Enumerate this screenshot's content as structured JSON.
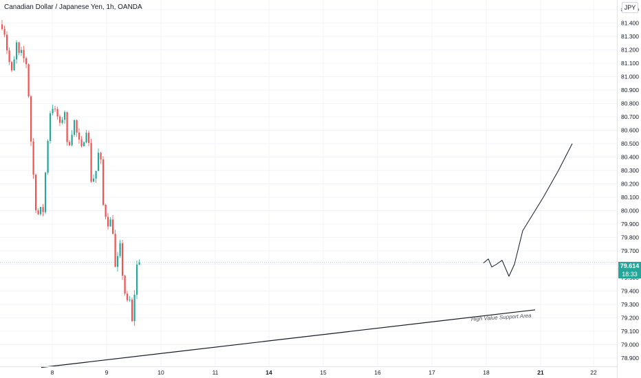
{
  "header": {
    "title": "Canadian Dollar / Japanese Yen, 1h, OANDA",
    "currency": "JPY"
  },
  "price_tag": {
    "value": "79.614",
    "timer": "18:33"
  },
  "colors": {
    "up": "#26a69a",
    "down": "#ef5350",
    "text": "#131722",
    "axis_text": "#131722",
    "grid": "#f0f3fa"
  },
  "chart_data": {
    "type": "candlestick",
    "title": "Canadian Dollar / Japanese Yen, 1h, OANDA",
    "ylim": [
      78.85,
      81.6
    ],
    "y_ticks": [
      "81.500",
      "81.400",
      "81.300",
      "81.200",
      "81.100",
      "81.000",
      "80.900",
      "80.800",
      "80.700",
      "80.600",
      "80.500",
      "80.400",
      "80.300",
      "80.200",
      "80.100",
      "80.000",
      "79.900",
      "79.800",
      "79.700",
      "79.600",
      "79.500",
      "79.400",
      "79.300",
      "79.200",
      "79.100",
      "79.000",
      "78.900"
    ],
    "x_ticks": [
      {
        "label": "8",
        "bold": false
      },
      {
        "label": "9",
        "bold": false
      },
      {
        "label": "10",
        "bold": false
      },
      {
        "label": "11",
        "bold": false
      },
      {
        "label": "14",
        "bold": true
      },
      {
        "label": "15",
        "bold": false
      },
      {
        "label": "16",
        "bold": false
      },
      {
        "label": "17",
        "bold": false
      },
      {
        "label": "18",
        "bold": false
      },
      {
        "label": "21",
        "bold": true
      },
      {
        "label": "22",
        "bold": false
      }
    ],
    "path_points": [
      [
        80.33,
        81.39
      ],
      [
        80.7,
        81.33
      ],
      [
        81.05,
        81.2
      ],
      [
        81.4,
        81.1
      ],
      [
        81.75,
        81.02
      ],
      [
        82.1,
        81.12
      ],
      [
        82.45,
        81.25
      ],
      [
        82.8,
        81.15
      ],
      [
        83.15,
        81.17
      ],
      [
        83.5,
        81.13
      ],
      [
        83.85,
        81.1
      ],
      [
        84.2,
        80.85
      ],
      [
        84.55,
        80.5
      ],
      [
        84.9,
        80.25
      ],
      [
        85.25,
        80.02
      ],
      [
        85.6,
        79.97
      ],
      [
        85.95,
        80.0
      ],
      [
        86.3,
        80.0
      ],
      [
        86.65,
        80.3
      ],
      [
        87.0,
        80.55
      ],
      [
        87.35,
        80.75
      ],
      [
        87.7,
        80.78
      ],
      [
        88.05,
        80.73
      ],
      [
        88.4,
        80.7
      ],
      [
        88.75,
        80.62
      ],
      [
        89.1,
        80.7
      ],
      [
        89.45,
        80.75
      ],
      [
        89.8,
        80.47
      ],
      [
        90.15,
        80.52
      ],
      [
        90.5,
        80.6
      ],
      [
        90.85,
        80.67
      ],
      [
        91.2,
        80.57
      ],
      [
        91.55,
        80.5
      ],
      [
        91.9,
        80.45
      ],
      [
        92.25,
        80.55
      ],
      [
        92.6,
        80.62
      ],
      [
        92.95,
        80.48
      ],
      [
        93.3,
        80.22
      ],
      [
        93.65,
        80.25
      ],
      [
        94.0,
        80.3
      ],
      [
        94.35,
        80.43
      ],
      [
        94.7,
        80.35
      ],
      [
        95.05,
        80.02
      ],
      [
        95.4,
        79.97
      ],
      [
        95.75,
        79.91
      ],
      [
        96.1,
        79.92
      ],
      [
        96.45,
        79.85
      ],
      [
        96.8,
        79.55
      ],
      [
        97.15,
        79.64
      ],
      [
        97.5,
        79.73
      ],
      [
        97.85,
        79.52
      ],
      [
        98.2,
        79.38
      ],
      [
        98.55,
        79.3
      ],
      [
        98.9,
        79.33
      ],
      [
        99.25,
        79.15
      ],
      [
        99.6,
        79.4
      ],
      [
        99.95,
        79.6
      ],
      [
        100.3,
        79.61
      ]
    ],
    "support_line": {
      "points": [
        [
          79.45,
          78.83
        ],
        [
          98.8,
          79.26
        ]
      ],
      "label": "High Value Support Area"
    },
    "projection": [
      [
        18.0,
        79.61
      ],
      [
        18.06,
        79.64
      ],
      [
        18.12,
        79.58
      ],
      [
        18.2,
        79.6
      ],
      [
        18.28,
        79.63
      ],
      [
        18.36,
        79.51
      ],
      [
        18.5,
        79.6
      ],
      [
        18.7,
        79.85
      ],
      [
        18.9,
        80.1
      ],
      [
        19.1,
        80.3
      ],
      [
        19.3,
        80.5
      ]
    ],
    "last_price": 79.614
  }
}
